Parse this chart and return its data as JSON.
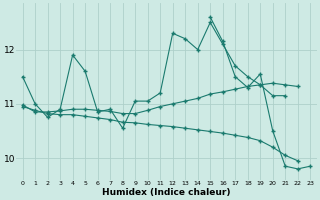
{
  "xlabel": "Humidex (Indice chaleur)",
  "bg_color": "#ceeae4",
  "grid_color": "#aed0ca",
  "line_color": "#1a7a6e",
  "x": [
    0,
    1,
    2,
    3,
    4,
    5,
    6,
    7,
    8,
    9,
    10,
    11,
    12,
    13,
    14,
    15,
    16,
    17,
    18,
    19,
    20,
    21,
    22,
    23
  ],
  "series1": [
    11.5,
    11.0,
    10.75,
    10.9,
    11.9,
    11.6,
    10.85,
    10.9,
    10.55,
    11.05,
    11.05,
    11.2,
    12.3,
    12.2,
    12.0,
    12.5,
    12.1,
    11.7,
    11.5,
    11.35,
    11.15,
    11.15,
    null,
    null
  ],
  "series2": [
    null,
    null,
    null,
    null,
    null,
    null,
    null,
    null,
    null,
    null,
    null,
    null,
    null,
    null,
    null,
    12.6,
    12.15,
    11.5,
    11.3,
    11.55,
    10.5,
    9.85,
    9.8,
    9.85
  ],
  "series3": [
    10.98,
    10.85,
    10.85,
    10.87,
    10.9,
    10.9,
    10.88,
    10.86,
    10.82,
    10.82,
    10.88,
    10.95,
    11.0,
    11.05,
    11.1,
    11.18,
    11.22,
    11.27,
    11.32,
    11.35,
    11.38,
    11.35,
    11.32,
    null
  ],
  "series4": [
    10.95,
    10.88,
    10.82,
    10.8,
    10.8,
    10.77,
    10.74,
    10.71,
    10.66,
    10.65,
    10.62,
    10.6,
    10.58,
    10.55,
    10.52,
    10.49,
    10.46,
    10.42,
    10.38,
    10.32,
    10.2,
    10.05,
    9.95,
    null
  ],
  "ylim": [
    9.6,
    12.85
  ],
  "yticks": [
    10,
    11,
    12
  ],
  "xticks": [
    0,
    1,
    2,
    3,
    4,
    5,
    6,
    7,
    8,
    9,
    10,
    11,
    12,
    13,
    14,
    15,
    16,
    17,
    18,
    19,
    20,
    21,
    22,
    23
  ]
}
